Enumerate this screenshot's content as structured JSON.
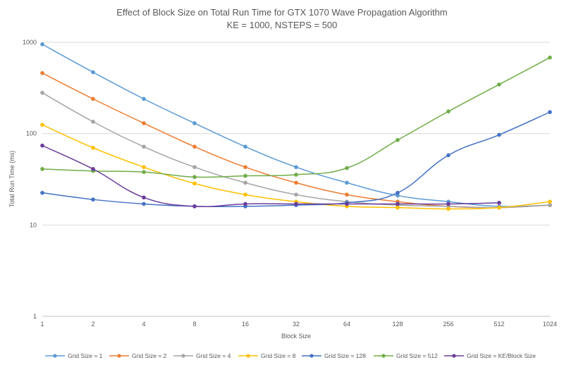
{
  "chart_data": {
    "type": "line",
    "title": "Effect of Block Size on Total Run Time for GTX 1070 Wave Propagation Algorithm",
    "subtitle": "KE = 1000, NSTEPS = 500",
    "xlabel": "Block Size",
    "ylabel": "Total Run Time (ms)",
    "y_scale": "log",
    "ylim": [
      1,
      1000
    ],
    "y_ticks": [
      "1",
      "10",
      "100",
      "1000"
    ],
    "categories": [
      "1",
      "2",
      "4",
      "8",
      "16",
      "32",
      "64",
      "128",
      "256",
      "512",
      "1024"
    ],
    "grid": "horizontal",
    "legend_position": "bottom",
    "colors": {
      "title": "#595959",
      "axis_text": "#595959",
      "gridline": "#d9d9d9"
    },
    "series": [
      {
        "name": "Grid Size = 1",
        "color": "#5b9bd5",
        "values": [
          950,
          470,
          240,
          130,
          72,
          43,
          29,
          21,
          18,
          16,
          16.5
        ]
      },
      {
        "name": "Grid Size = 2",
        "color": "#ed7d31",
        "values": [
          460,
          240,
          130,
          72,
          43,
          29,
          21.5,
          18,
          16,
          15.5,
          16.5
        ]
      },
      {
        "name": "Grid Size = 4",
        "color": "#a5a5a5",
        "values": [
          280,
          135,
          72,
          43,
          29,
          21.5,
          18,
          16.5,
          16,
          15.5,
          16.5
        ]
      },
      {
        "name": "Grid Size = 8",
        "color": "#ffc000",
        "values": [
          125,
          70,
          43,
          28.5,
          21.5,
          18,
          16,
          15.5,
          15,
          15.5,
          18
        ]
      },
      {
        "name": "Grid Size = 128",
        "color": "#4472c4",
        "values": [
          22.5,
          19,
          17,
          16,
          16,
          16.5,
          17.5,
          22.5,
          58,
          97,
          172
        ]
      },
      {
        "name": "Grid Size = 512",
        "color": "#70ad47",
        "values": [
          41,
          39,
          38,
          33.5,
          34.5,
          35.5,
          42,
          85,
          175,
          345,
          680
        ]
      },
      {
        "name": "Grid Size = KE/Block Size",
        "color": "#6a3d9a",
        "values": [
          74,
          41,
          20,
          16,
          17,
          17,
          17,
          17,
          17,
          17.5,
          null
        ]
      }
    ]
  }
}
